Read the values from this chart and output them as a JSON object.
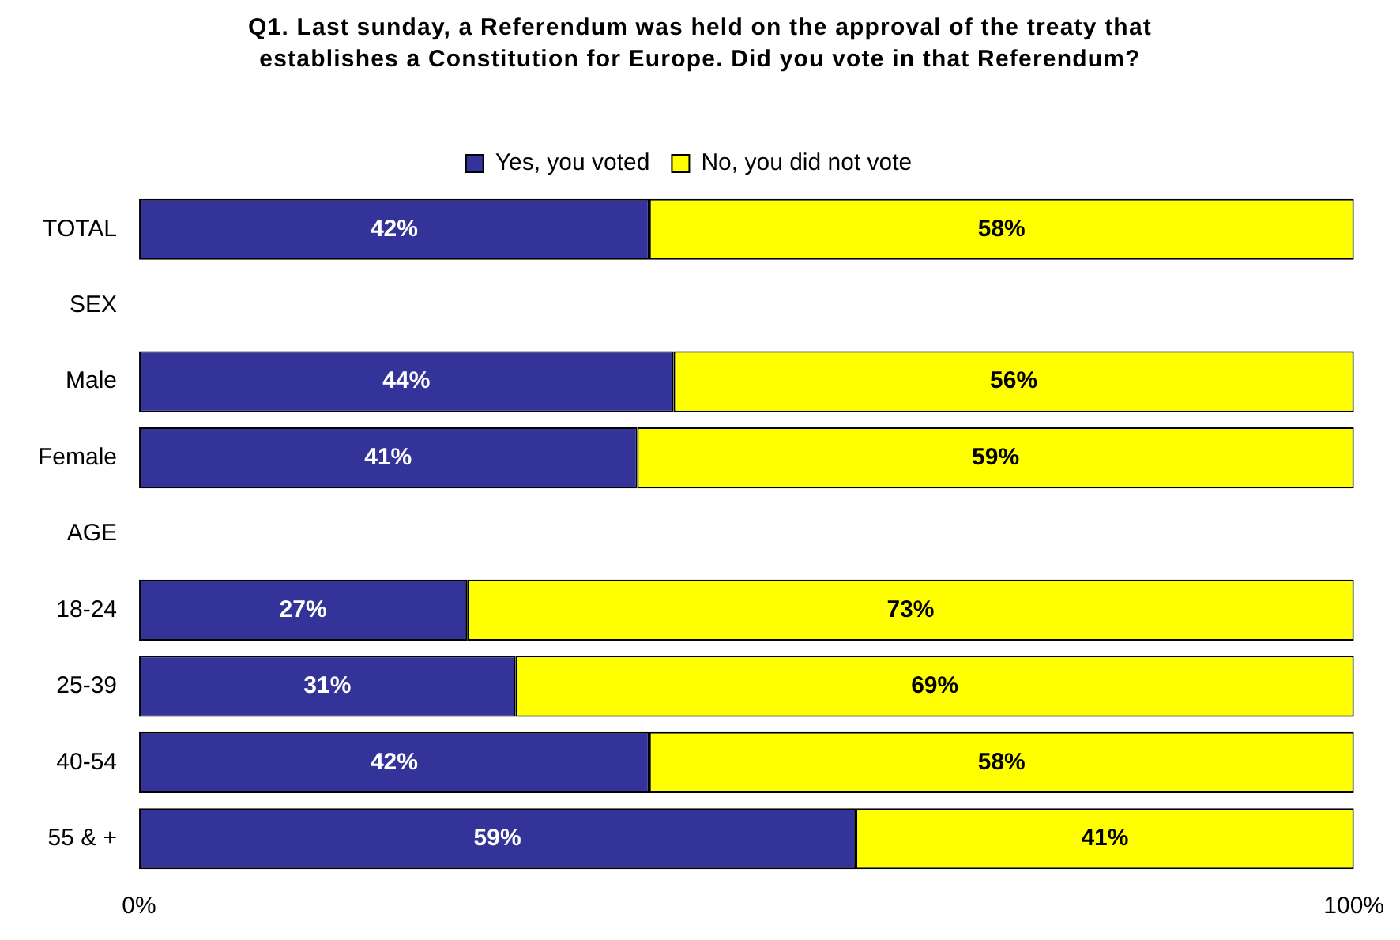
{
  "chart_data": {
    "type": "bar",
    "orientation": "horizontal",
    "stacked": true,
    "title": "Q1. Last sunday, a Referendum was held on the approval of the treaty that establishes a Constitution for Europe. Did you vote in that Referendum?",
    "categories": [
      "TOTAL",
      "SEX",
      "Male",
      "Female",
      "AGE",
      "18-24",
      "25-39",
      "40-54",
      "55 & +"
    ],
    "series": [
      {
        "name": "Yes, you voted",
        "color": "#333399",
        "values": [
          42,
          null,
          44,
          41,
          null,
          27,
          31,
          42,
          59
        ],
        "value_labels": [
          "42%",
          null,
          "44%",
          "41%",
          null,
          "27%",
          "31%",
          "42%",
          "59%"
        ]
      },
      {
        "name": "No, you did not vote",
        "color": "#ffff00",
        "values": [
          58,
          null,
          56,
          59,
          null,
          73,
          69,
          58,
          41
        ],
        "value_labels": [
          "58%",
          null,
          "56%",
          "59%",
          null,
          "73%",
          "69%",
          "58%",
          "41%"
        ]
      }
    ],
    "xlim": [
      0,
      100
    ],
    "xticks": [
      {
        "value": 0,
        "label": "0%"
      },
      {
        "value": 100,
        "label": "100%"
      }
    ],
    "grid": false,
    "legend": "top"
  }
}
